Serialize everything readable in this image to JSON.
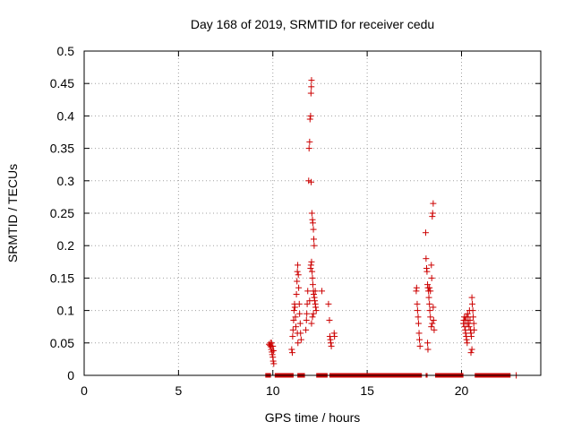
{
  "chart_data": {
    "type": "scatter",
    "title": "Day 168 of 2019, SRMTID for receiver cedu",
    "xlabel": "GPS time / hours",
    "ylabel": "SRMTID / TECUs",
    "xlim": [
      0,
      24.2
    ],
    "ylim": [
      0,
      0.5
    ],
    "xticks": [
      0,
      5,
      10,
      15,
      20
    ],
    "yticks": [
      0,
      0.05,
      0.1,
      0.15,
      0.2,
      0.25,
      0.3,
      0.35,
      0.4,
      0.45,
      0.5
    ],
    "grid": true,
    "marker": "+",
    "colors": {
      "points": "#cc0000",
      "grid": "#a0a0a0",
      "axes": "#000000"
    },
    "series": [
      {
        "name": "SRMTID",
        "points": [
          [
            9.8,
            0.048
          ],
          [
            9.85,
            0.046
          ],
          [
            9.9,
            0.044
          ],
          [
            9.92,
            0.04
          ],
          [
            9.95,
            0.036
          ],
          [
            9.97,
            0.032
          ],
          [
            10.0,
            0.028
          ],
          [
            10.02,
            0.022
          ],
          [
            10.05,
            0.018
          ],
          [
            9.88,
            0.05
          ],
          [
            9.93,
            0.05
          ],
          [
            10.0,
            0.045
          ],
          [
            10.03,
            0.038
          ],
          [
            11.0,
            0.04
          ],
          [
            11.03,
            0.035
          ],
          [
            11.05,
            0.06
          ],
          [
            11.07,
            0.07
          ],
          [
            11.1,
            0.085
          ],
          [
            11.12,
            0.1
          ],
          [
            11.15,
            0.11
          ],
          [
            11.17,
            0.105
          ],
          [
            11.2,
            0.09
          ],
          [
            11.22,
            0.075
          ],
          [
            11.25,
            0.125
          ],
          [
            11.28,
            0.145
          ],
          [
            11.3,
            0.16
          ],
          [
            11.32,
            0.17
          ],
          [
            11.35,
            0.155
          ],
          [
            11.37,
            0.135
          ],
          [
            11.4,
            0.11
          ],
          [
            11.42,
            0.095
          ],
          [
            11.45,
            0.08
          ],
          [
            11.47,
            0.065
          ],
          [
            11.5,
            0.055
          ],
          [
            11.3,
            0.065
          ],
          [
            11.33,
            0.05
          ],
          [
            11.75,
            0.07
          ],
          [
            11.78,
            0.085
          ],
          [
            11.8,
            0.095
          ],
          [
            11.82,
            0.11
          ],
          [
            11.85,
            0.13
          ],
          [
            11.9,
            0.3
          ],
          [
            11.92,
            0.35
          ],
          [
            11.95,
            0.36
          ],
          [
            11.97,
            0.395
          ],
          [
            12.0,
            0.4
          ],
          [
            12.02,
            0.435
          ],
          [
            12.04,
            0.445
          ],
          [
            12.05,
            0.455
          ],
          [
            12.03,
            0.298
          ],
          [
            12.07,
            0.25
          ],
          [
            12.1,
            0.24
          ],
          [
            12.12,
            0.235
          ],
          [
            12.15,
            0.225
          ],
          [
            12.17,
            0.21
          ],
          [
            12.19,
            0.2
          ],
          [
            12.0,
            0.165
          ],
          [
            12.02,
            0.17
          ],
          [
            12.05,
            0.175
          ],
          [
            12.08,
            0.16
          ],
          [
            12.1,
            0.15
          ],
          [
            12.12,
            0.14
          ],
          [
            12.15,
            0.13
          ],
          [
            12.17,
            0.125
          ],
          [
            12.2,
            0.12
          ],
          [
            12.22,
            0.115
          ],
          [
            12.25,
            0.11
          ],
          [
            12.27,
            0.105
          ],
          [
            12.3,
            0.1
          ],
          [
            12.1,
            0.09
          ],
          [
            12.05,
            0.08
          ],
          [
            11.95,
            0.115
          ],
          [
            12.15,
            0.095
          ],
          [
            12.25,
            0.13
          ],
          [
            12.6,
            0.13
          ],
          [
            12.95,
            0.11
          ],
          [
            13.0,
            0.085
          ],
          [
            13.02,
            0.06
          ],
          [
            13.05,
            0.055
          ],
          [
            13.07,
            0.05
          ],
          [
            13.1,
            0.045
          ],
          [
            13.25,
            0.065
          ],
          [
            13.27,
            0.06
          ],
          [
            17.6,
            0.13
          ],
          [
            17.62,
            0.135
          ],
          [
            17.65,
            0.11
          ],
          [
            17.67,
            0.1
          ],
          [
            17.7,
            0.09
          ],
          [
            17.72,
            0.08
          ],
          [
            17.75,
            0.065
          ],
          [
            17.77,
            0.055
          ],
          [
            17.8,
            0.045
          ],
          [
            18.1,
            0.22
          ],
          [
            18.12,
            0.18
          ],
          [
            18.15,
            0.165
          ],
          [
            18.17,
            0.16
          ],
          [
            18.2,
            0.14
          ],
          [
            18.22,
            0.135
          ],
          [
            18.25,
            0.13
          ],
          [
            18.27,
            0.12
          ],
          [
            18.3,
            0.11
          ],
          [
            18.32,
            0.1
          ],
          [
            18.35,
            0.09
          ],
          [
            18.2,
            0.05
          ],
          [
            18.22,
            0.04
          ],
          [
            18.3,
            0.135
          ],
          [
            18.35,
            0.13
          ],
          [
            18.4,
            0.17
          ],
          [
            18.42,
            0.15
          ],
          [
            18.45,
            0.245
          ],
          [
            18.47,
            0.25
          ],
          [
            18.5,
            0.265
          ],
          [
            18.5,
            0.105
          ],
          [
            18.52,
            0.085
          ],
          [
            18.55,
            0.07
          ],
          [
            18.4,
            0.075
          ],
          [
            18.45,
            0.08
          ],
          [
            20.1,
            0.08
          ],
          [
            20.12,
            0.085
          ],
          [
            20.15,
            0.09
          ],
          [
            20.17,
            0.075
          ],
          [
            20.2,
            0.07
          ],
          [
            20.22,
            0.065
          ],
          [
            20.25,
            0.06
          ],
          [
            20.27,
            0.055
          ],
          [
            20.3,
            0.05
          ],
          [
            20.32,
            0.095
          ],
          [
            20.35,
            0.09
          ],
          [
            20.37,
            0.08
          ],
          [
            20.4,
            0.075
          ],
          [
            20.42,
            0.1
          ],
          [
            20.45,
            0.085
          ],
          [
            20.47,
            0.07
          ],
          [
            20.5,
            0.065
          ],
          [
            20.52,
            0.06
          ],
          [
            20.55,
            0.12
          ],
          [
            20.57,
            0.11
          ],
          [
            20.6,
            0.1
          ],
          [
            20.62,
            0.09
          ],
          [
            20.65,
            0.08
          ],
          [
            20.67,
            0.07
          ],
          [
            20.55,
            0.04
          ],
          [
            20.5,
            0.035
          ],
          [
            20.2,
            0.085
          ],
          [
            20.25,
            0.09
          ],
          [
            20.3,
            0.08
          ]
        ],
        "baseline_segments": [
          [
            9.6,
            9.9
          ],
          [
            10.1,
            11.1
          ],
          [
            11.3,
            11.7
          ],
          [
            12.3,
            12.9
          ],
          [
            13.0,
            17.9
          ],
          [
            18.1,
            18.2
          ],
          [
            18.6,
            20.1
          ],
          [
            20.7,
            22.6
          ]
        ],
        "baseline_singles": [
          22.9
        ]
      }
    ]
  }
}
